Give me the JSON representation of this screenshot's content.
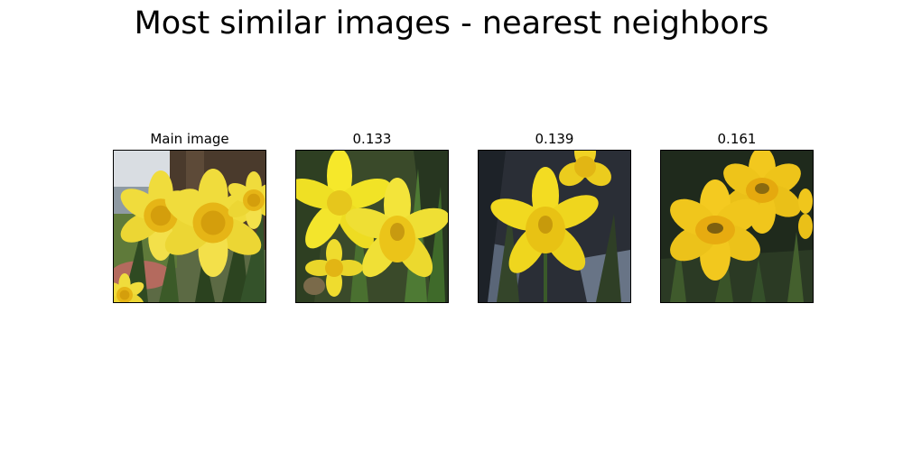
{
  "figure": {
    "title": "Most similar images - nearest neighbors"
  },
  "panels": [
    {
      "label": "Main image"
    },
    {
      "label": "0.133"
    },
    {
      "label": "0.139"
    },
    {
      "label": "0.161"
    }
  ],
  "colors": {
    "petal": "#f2e03a",
    "trumpet": "#e8b811",
    "leaf": "#3c5a2a"
  }
}
